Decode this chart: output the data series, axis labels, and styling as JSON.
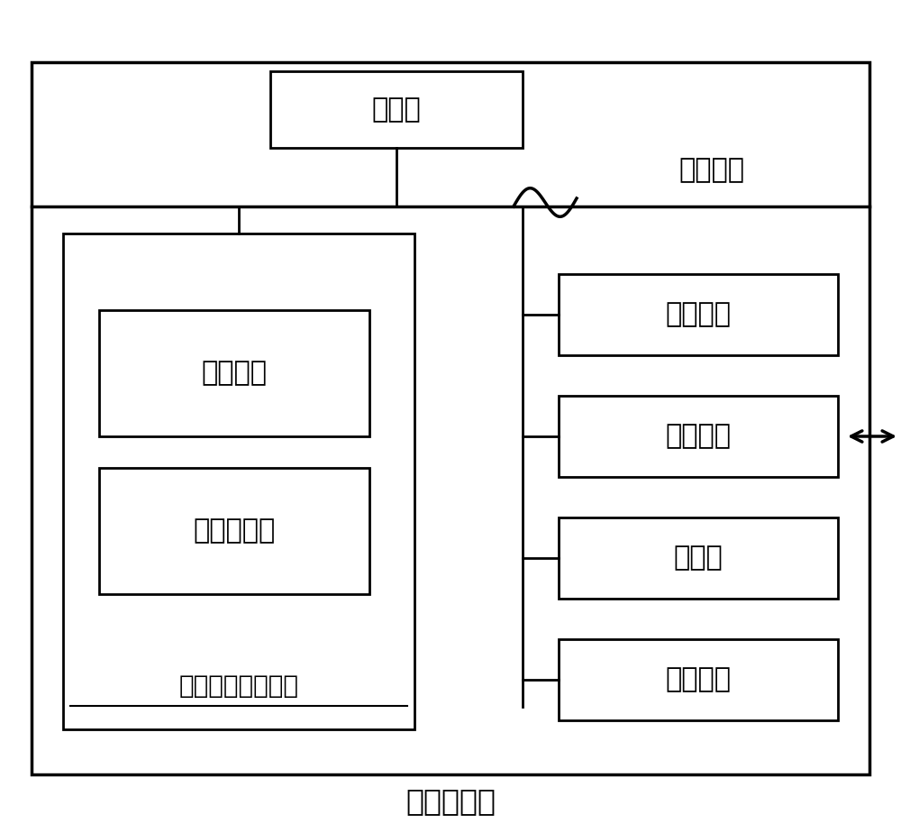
{
  "title": "计算机设备",
  "system_bus_label": "系统总线",
  "processor_label": "处理器",
  "nonvolatile_label": "非易失性存储介质",
  "os_label": "操作系统",
  "program_label": "计算机程序",
  "memory_label": "内存储器",
  "network_label": "网络接口",
  "display_label": "显示屏",
  "input_label": "输入装置",
  "bg_color": "#ffffff",
  "box_color": "#000000",
  "line_color": "#000000",
  "font_size_large": 22,
  "font_size_medium": 20,
  "font_size_small": 18,
  "font_size_title": 24
}
